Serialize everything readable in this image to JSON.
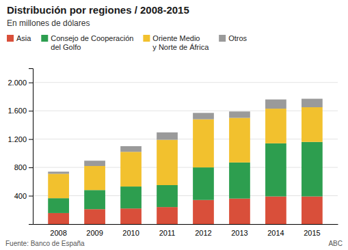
{
  "chart_data": {
    "type": "bar",
    "stacked": true,
    "title": "Distribución por regiones / 2008-2015",
    "subtitle": "En millones de dólares",
    "source": "Fuente: Banco de España",
    "watermark": "ABC",
    "categories": [
      "2008",
      "2009",
      "2010",
      "2011",
      "2012",
      "2013",
      "2014",
      "2015"
    ],
    "series": [
      {
        "name": "Asia",
        "color": "#d94f3a",
        "values": [
          155,
          210,
          220,
          240,
          340,
          360,
          390,
          390
        ]
      },
      {
        "name": "Consejo de Cooperación\ndel Golfo",
        "color": "#2d9e4f",
        "values": [
          210,
          270,
          310,
          310,
          460,
          510,
          750,
          770
        ]
      },
      {
        "name": "Oriente Medio\ny Norte de África",
        "color": "#f2c12e",
        "values": [
          345,
          340,
          490,
          640,
          680,
          630,
          490,
          490
        ]
      },
      {
        "name": "Otros",
        "color": "#9a9a9a",
        "values": [
          30,
          75,
          80,
          105,
          90,
          90,
          130,
          120
        ]
      }
    ],
    "ylim": [
      0,
      2200
    ],
    "yticks": [
      400,
      800,
      {
        "value": 1200,
        "label": "1.200"
      },
      {
        "value": 1600,
        "label": "1.600"
      },
      {
        "value": 2000,
        "label": "2.000"
      }
    ],
    "grid": true,
    "legend": "top"
  }
}
